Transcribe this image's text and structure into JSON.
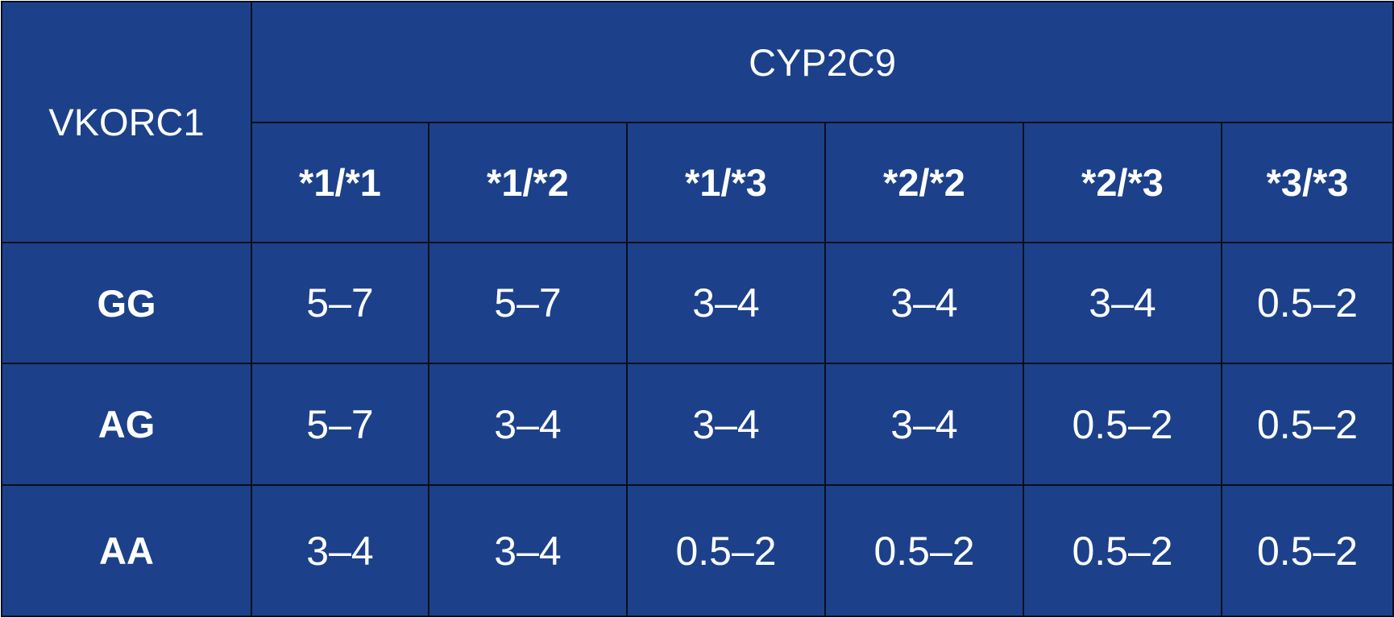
{
  "table": {
    "row_header_label": "VKORC1",
    "column_group_label": "CYP2C9",
    "columns": [
      "*1/*1",
      "*1/*2",
      "*1/*3",
      "*2/*2",
      "*2/*3",
      "*3/*3"
    ],
    "rows": [
      {
        "label": "GG",
        "values": [
          "5–7",
          "5–7",
          "3–4",
          "3–4",
          "3–4",
          "0.5–2"
        ]
      },
      {
        "label": "AG",
        "values": [
          "5–7",
          "3–4",
          "3–4",
          "3–4",
          "0.5–2",
          "0.5–2"
        ]
      },
      {
        "label": "AA",
        "values": [
          "3–4",
          "3–4",
          "0.5–2",
          "0.5–2",
          "0.5–2",
          "0.5–2"
        ]
      }
    ],
    "colors": {
      "cell_background": "#1c418a",
      "border": "#0a0f1c",
      "text": "#ffffff"
    }
  }
}
